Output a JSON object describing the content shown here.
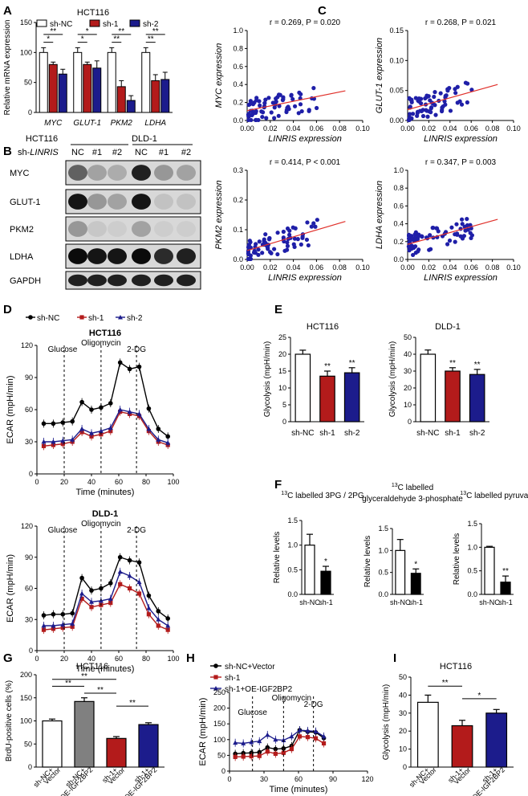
{
  "colors": {
    "red": "#b31b1b",
    "blue": "#1c1c8c",
    "gray": "#808080",
    "black": "#000000",
    "white": "#ffffff",
    "scatter": "#1f1fa8",
    "fit": "#e0302a"
  },
  "panels": {
    "A": {
      "label": "A",
      "title": "HCT116",
      "ylabel": "Relative mRNA expression"
    },
    "B": {
      "label": "B",
      "rowhead": "sh-",
      "rowhead_italic": "LINRIS",
      "cols": [
        "NC",
        "#1",
        "#2",
        "NC",
        "#1",
        "#2"
      ],
      "groups": [
        "HCT116",
        "DLD-1"
      ],
      "rows": [
        "MYC",
        "GLUT-1",
        "PKM2",
        "LDHA",
        "GAPDH"
      ]
    },
    "C": {
      "label": "C"
    },
    "D": {
      "label": "D",
      "legend": [
        "sh-NC",
        "sh-1",
        "sh-2"
      ]
    },
    "E": {
      "label": "E"
    },
    "F": {
      "label": "F"
    },
    "G": {
      "label": "G",
      "title": "HCT116"
    },
    "H": {
      "label": "H",
      "legend": [
        "sh-NC+Vector",
        "sh-1",
        "sh-1+OE-IGF2BP2"
      ]
    },
    "I": {
      "label": "I",
      "title": "HCT116"
    }
  },
  "chart_data": [
    {
      "id": "A",
      "type": "bar",
      "title": "HCT116",
      "ylabel": "Relative mRNA expression",
      "categories": [
        "MYC",
        "GLUT-1",
        "PKM2",
        "LDHA"
      ],
      "ylim": [
        0,
        150
      ],
      "yticks": [
        0,
        50,
        100,
        150
      ],
      "series": [
        {
          "name": "sh-NC",
          "values": [
            100,
            100,
            100,
            100
          ],
          "err": [
            8,
            8,
            8,
            8
          ]
        },
        {
          "name": "sh-1",
          "values": [
            80,
            80,
            43,
            53
          ],
          "err": [
            4,
            4,
            10,
            10
          ]
        },
        {
          "name": "sh-2",
          "values": [
            64,
            74,
            20,
            55
          ],
          "err": [
            8,
            12,
            8,
            12
          ]
        }
      ],
      "sig": [
        "**",
        "*",
        "*",
        "*",
        "**",
        "**",
        "**",
        "**"
      ]
    },
    {
      "id": "C1",
      "type": "scatter",
      "annotation": "r = 0.269, P = 0.020",
      "xlabel": "LINRIS expression",
      "ylabel": "MYC expression",
      "xlim": [
        0,
        0.1
      ],
      "ylim": [
        0,
        1.0
      ],
      "xticks": [
        "0.00",
        "0.02",
        "0.04",
        "0.06",
        "0.08",
        "0.10"
      ],
      "yticks": [
        "0.0",
        "0.2",
        "0.4",
        "0.6",
        "0.8",
        "1.0"
      ],
      "fit": [
        [
          0,
          0.11
        ],
        [
          0.085,
          0.33
        ]
      ]
    },
    {
      "id": "C2",
      "type": "scatter",
      "annotation": "r = 0.268, P = 0.021",
      "xlabel": "LINRIS expression",
      "ylabel": "GLUT-1 expression",
      "xlim": [
        0,
        0.1
      ],
      "ylim": [
        0,
        0.15
      ],
      "xticks": [
        "0.00",
        "0.02",
        "0.04",
        "0.06",
        "0.08",
        "0.10"
      ],
      "yticks": [
        "0.00",
        "0.05",
        "0.10",
        "0.15"
      ],
      "fit": [
        [
          0,
          0.018
        ],
        [
          0.085,
          0.06
        ]
      ]
    },
    {
      "id": "C3",
      "type": "scatter",
      "annotation": "r = 0.414, P < 0.001",
      "xlabel": "LINRIS expression",
      "ylabel": "PKM2 expression",
      "xlim": [
        0,
        0.1
      ],
      "ylim": [
        0,
        0.3
      ],
      "xticks": [
        "0.00",
        "0.02",
        "0.04",
        "0.06",
        "0.08",
        "0.10"
      ],
      "yticks": [
        "0.0",
        "0.1",
        "0.2",
        "0.3"
      ],
      "fit": [
        [
          0,
          0.03
        ],
        [
          0.085,
          0.128
        ]
      ]
    },
    {
      "id": "C4",
      "type": "scatter",
      "annotation": "r = 0.347, P = 0.003",
      "xlabel": "LINRIS expression",
      "ylabel": "LDHA expression",
      "xlim": [
        0,
        0.1
      ],
      "ylim": [
        0,
        1.0
      ],
      "xticks": [
        "0.00",
        "0.02",
        "0.04",
        "0.06",
        "0.08",
        "0.10"
      ],
      "yticks": [
        "0.0",
        "0.2",
        "0.4",
        "0.6",
        "0.8",
        "1.0"
      ],
      "fit": [
        [
          0,
          0.17
        ],
        [
          0.085,
          0.45
        ]
      ]
    },
    {
      "id": "D1",
      "type": "line",
      "title": "HCT116",
      "xlabel": "Time (minutes)",
      "ylabel": "ECAR (mpH/min)",
      "xlim": [
        0,
        100
      ],
      "ylim": [
        0,
        120
      ],
      "xticks": [
        0,
        20,
        40,
        60,
        80,
        100
      ],
      "yticks": [
        0,
        30,
        60,
        90,
        120
      ],
      "x": [
        0,
        7,
        14,
        21,
        28,
        35,
        42,
        49,
        56,
        63,
        70,
        77,
        84,
        91
      ],
      "series": [
        {
          "name": "sh-NC",
          "values": [
            47,
            47,
            48,
            49,
            67,
            60,
            62,
            66,
            104,
            98,
            100,
            61,
            42,
            35
          ]
        },
        {
          "name": "sh-1",
          "values": [
            26,
            27,
            28,
            30,
            39,
            35,
            37,
            40,
            58,
            56,
            54,
            40,
            30,
            27
          ]
        },
        {
          "name": "sh-2",
          "values": [
            30,
            30,
            31,
            32,
            42,
            38,
            40,
            43,
            60,
            58,
            56,
            42,
            32,
            29
          ]
        }
      ],
      "events": [
        "Glucose",
        "Oligomycin",
        "2-DG"
      ]
    },
    {
      "id": "D2",
      "type": "line",
      "title": "DLD-1",
      "xlabel": "Time (minutes)",
      "ylabel": "ECAR (mpH/min)",
      "xlim": [
        0,
        100
      ],
      "ylim": [
        0,
        120
      ],
      "xticks": [
        0,
        20,
        40,
        60,
        80,
        100
      ],
      "yticks": [
        0,
        30,
        60,
        90,
        120
      ],
      "x": [
        0,
        7,
        14,
        21,
        28,
        35,
        42,
        49,
        56,
        63,
        70,
        77,
        84,
        91
      ],
      "series": [
        {
          "name": "sh-NC",
          "values": [
            34,
            35,
            35,
            36,
            70,
            58,
            60,
            65,
            90,
            87,
            85,
            53,
            38,
            31
          ]
        },
        {
          "name": "sh-1",
          "values": [
            20,
            21,
            22,
            23,
            50,
            42,
            44,
            46,
            64,
            60,
            55,
            35,
            24,
            20
          ]
        },
        {
          "name": "sh-2",
          "values": [
            24,
            24,
            25,
            26,
            55,
            47,
            48,
            50,
            76,
            72,
            66,
            41,
            30,
            24
          ]
        }
      ],
      "events": [
        "Glucose",
        "Oligomycin",
        "2-DG"
      ]
    },
    {
      "id": "E1",
      "type": "bar",
      "title": "HCT116",
      "ylabel": "Glycolysis (mpH/min)",
      "categories": [
        "sh-NC",
        "sh-1",
        "sh-2"
      ],
      "values": [
        20,
        13.5,
        14.5
      ],
      "err": [
        1.2,
        1.5,
        1.5
      ],
      "ylim": [
        0,
        25
      ],
      "yticks": [
        0,
        5,
        10,
        15,
        20,
        25
      ],
      "sig": [
        "",
        "**",
        "**"
      ]
    },
    {
      "id": "E2",
      "type": "bar",
      "title": "DLD-1",
      "ylabel": "Glycolysis (mpH/min)",
      "categories": [
        "sh-NC",
        "sh-1",
        "sh-2"
      ],
      "values": [
        40,
        30,
        28
      ],
      "err": [
        2.5,
        2,
        3
      ],
      "ylim": [
        0,
        50
      ],
      "yticks": [
        0,
        10,
        20,
        30,
        40,
        50
      ],
      "sig": [
        "",
        "**",
        "**"
      ]
    },
    {
      "id": "F1",
      "type": "bar",
      "title_sup": "13",
      "title": "C labelled 3PG / 2PG",
      "ylabel": "Relative levels",
      "categories": [
        "sh-NC",
        "sh-1"
      ],
      "values": [
        1.0,
        0.47
      ],
      "err": [
        0.22,
        0.1
      ],
      "ylim": [
        0,
        1.5
      ],
      "yticks": [
        "0.0",
        "0.5",
        "1.0",
        "1.5"
      ],
      "sig": [
        "",
        "*"
      ]
    },
    {
      "id": "F2",
      "type": "bar",
      "title_sup": "13",
      "title": "C labelled",
      "title2": "glyceraldehyde 3-phosphate",
      "ylabel": "Relative levels",
      "categories": [
        "sh-NC",
        "sh-1"
      ],
      "values": [
        1.0,
        0.48
      ],
      "err": [
        0.25,
        0.1
      ],
      "ylim": [
        0,
        1.5
      ],
      "yticks": [
        "0.0",
        "0.5",
        "1.0",
        "1.5"
      ],
      "sig": [
        "",
        "*"
      ]
    },
    {
      "id": "F3",
      "type": "bar",
      "title_sup": "13",
      "title": "C labelled pyruvate",
      "ylabel": "Relative levels",
      "categories": [
        "sh-NC",
        "sh-1"
      ],
      "values": [
        1.0,
        0.26
      ],
      "err": [
        0.02,
        0.13
      ],
      "ylim": [
        0,
        1.5
      ],
      "yticks": [
        "0.0",
        "0.5",
        "1.0",
        "1.5"
      ],
      "sig": [
        "",
        "**"
      ]
    },
    {
      "id": "G",
      "type": "bar",
      "title": "HCT116",
      "ylabel": "BrdU-positive cells (%)",
      "categories": [
        [
          "sh-NC+",
          "Vector"
        ],
        [
          "sh-NC+",
          "OE-IGF2BP2"
        ],
        [
          "sh-1+",
          "Vector"
        ],
        [
          "sh-1+",
          "OE-IGF2BP2"
        ]
      ],
      "values": [
        100,
        142,
        62,
        92
      ],
      "err": [
        4,
        8,
        4,
        4
      ],
      "ylim": [
        0,
        200
      ],
      "yticks": [
        0,
        50,
        100,
        150,
        200
      ],
      "sig": [
        "**",
        "**",
        "**",
        "**"
      ]
    },
    {
      "id": "H",
      "type": "line",
      "xlabel": "Time (minutes)",
      "ylabel": "ECAR (mpH/min)",
      "xlim": [
        0,
        120
      ],
      "ylim": [
        0,
        250
      ],
      "xticks": [
        0,
        30,
        60,
        90,
        120
      ],
      "yticks": [
        0,
        50,
        100,
        150,
        200,
        250
      ],
      "x": [
        0,
        7,
        14,
        21,
        28,
        35,
        42,
        49,
        56,
        63,
        70,
        77
      ],
      "series": [
        {
          "name": "sh-NC+Vector",
          "values": [
            55,
            57,
            58,
            60,
            75,
            70,
            72,
            80,
            130,
            125,
            123,
            105
          ]
        },
        {
          "name": "sh-1",
          "values": [
            45,
            46,
            47,
            48,
            62,
            55,
            58,
            70,
            110,
            108,
            104,
            88
          ]
        },
        {
          "name": "sh-1+OE-IGF2BP2",
          "values": [
            90,
            88,
            92,
            95,
            115,
            100,
            98,
            110,
            130,
            128,
            126,
            110
          ]
        }
      ],
      "events": [
        "Glucose",
        "Oligomycin",
        "2-DG"
      ]
    },
    {
      "id": "I",
      "type": "bar",
      "title": "HCT116",
      "ylabel": "Glycolysis (mpH/min)",
      "categories": [
        [
          "sh-NC+",
          "Vector"
        ],
        [
          "sh-1+",
          "Vector"
        ],
        [
          "sh-1+",
          "OE-IGF2BP2"
        ]
      ],
      "values": [
        36,
        23,
        30
      ],
      "err": [
        4,
        3,
        2
      ],
      "ylim": [
        0,
        50
      ],
      "yticks": [
        0,
        10,
        20,
        30,
        40,
        50
      ],
      "sig": [
        "**",
        "*"
      ]
    }
  ]
}
